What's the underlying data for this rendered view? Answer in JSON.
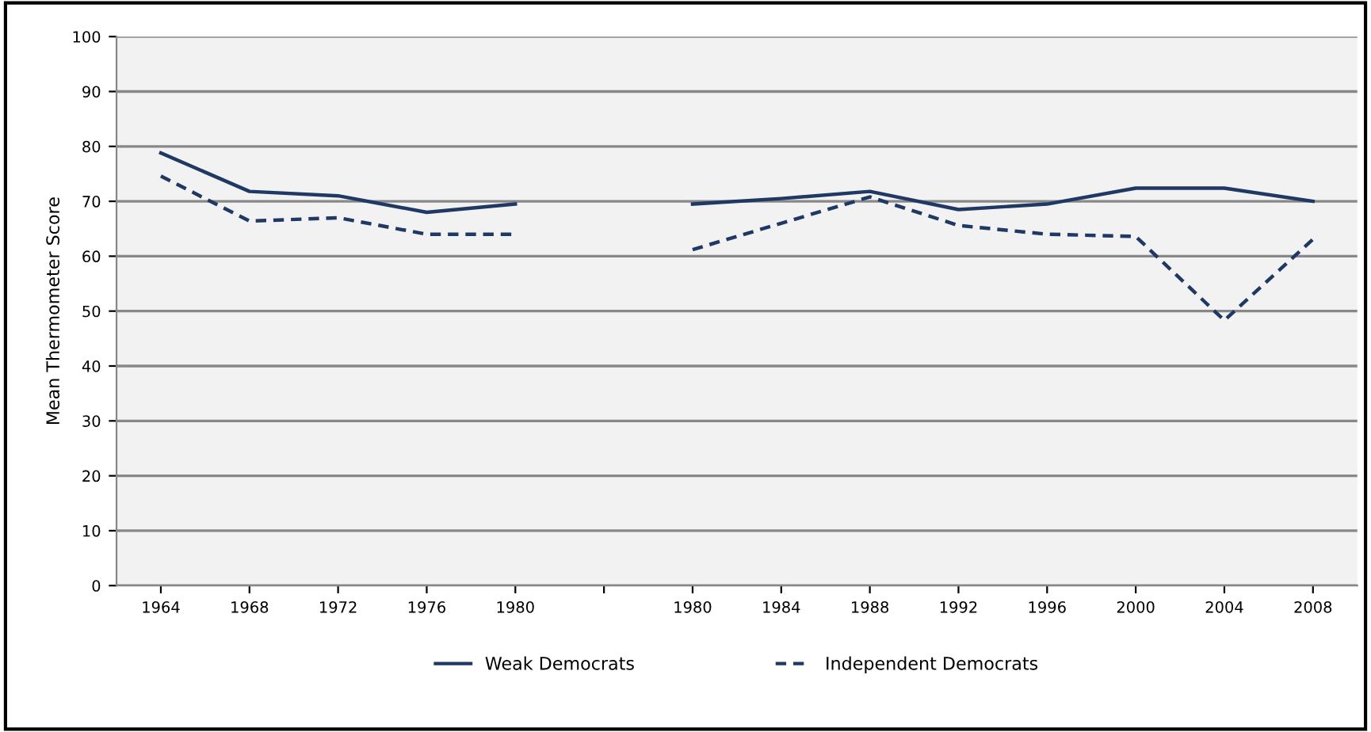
{
  "chart_data": {
    "type": "line",
    "ylabel": "Mean Thermometer Score",
    "categories": [
      "1964",
      "1968",
      "1972",
      "1976",
      "1980",
      null,
      "1980",
      "1984",
      "1988",
      "1992",
      "1996",
      "2000",
      "2004",
      "2008"
    ],
    "series": [
      {
        "name": "Weak Democrats",
        "color": "#1f3864",
        "line_style": "solid",
        "values": [
          78.8,
          71.8,
          71,
          68,
          69.5,
          null,
          69.5,
          70.5,
          71.8,
          68.5,
          69.5,
          72.4,
          72.4,
          70
        ]
      },
      {
        "name": "Independent Democrats",
        "color": "#1f3864",
        "line_style": "dashed",
        "values": [
          74.6,
          66.4,
          67,
          64,
          64,
          null,
          61.2,
          66,
          70.8,
          65.6,
          64,
          63.6,
          48.3,
          63.1
        ]
      }
    ],
    "ylim": [
      0,
      100
    ],
    "yticks": [
      0,
      10,
      20,
      30,
      40,
      50,
      60,
      70,
      80,
      90,
      100
    ],
    "grid": "y",
    "legend": "bottom",
    "marker": "none"
  }
}
